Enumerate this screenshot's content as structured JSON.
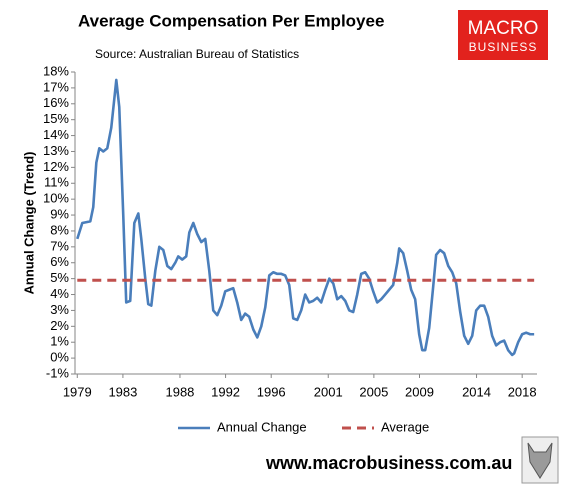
{
  "chart_data": {
    "type": "line",
    "title": "Average Compensation Per Employee",
    "subtitle": "Source: Australian Bureau of Statistics",
    "ylabel": "Annual Change (Trend)",
    "legend": "bottom",
    "xlim": [
      1978.8,
      2019.3
    ],
    "xticks": [
      1979,
      1983,
      1988,
      1992,
      1996,
      2001,
      2005,
      2009,
      2014,
      2018
    ],
    "ylim": [
      -1,
      18
    ],
    "yticks": [
      {
        "value": -1,
        "label": "-1%"
      },
      {
        "value": 0,
        "label": "0%"
      },
      {
        "value": 1,
        "label": "1%"
      },
      {
        "value": 2,
        "label": "2%"
      },
      {
        "value": 3,
        "label": "3%"
      },
      {
        "value": 4,
        "label": "4%"
      },
      {
        "value": 5,
        "label": "5%"
      },
      {
        "value": 6,
        "label": "6%"
      },
      {
        "value": 7,
        "label": "7%"
      },
      {
        "value": 8,
        "label": "8%"
      },
      {
        "value": 9,
        "label": "9%"
      },
      {
        "value": 10,
        "label": "10%"
      },
      {
        "value": 11,
        "label": "11%"
      },
      {
        "value": 12,
        "label": "12%"
      },
      {
        "value": 13,
        "label": "13%"
      },
      {
        "value": 14,
        "label": "14%"
      },
      {
        "value": 15,
        "label": "15%"
      },
      {
        "value": 16,
        "label": "16%"
      },
      {
        "value": 17,
        "label": "17%"
      },
      {
        "value": 18,
        "label": "18%"
      }
    ],
    "series": [
      {
        "name": "Annual Change",
        "color": "#4a7ebb",
        "style": "solid",
        "x": [
          1979.0,
          1979.44,
          1980.14,
          1980.4,
          1980.67,
          1980.93,
          1981.28,
          1981.63,
          1981.98,
          1982.42,
          1982.68,
          1983.03,
          1983.29,
          1983.64,
          1984.0,
          1984.35,
          1984.61,
          1984.96,
          1985.22,
          1985.49,
          1985.84,
          1986.19,
          1986.54,
          1986.89,
          1987.24,
          1987.59,
          1987.85,
          1988.2,
          1988.55,
          1988.82,
          1989.17,
          1989.52,
          1989.87,
          1990.22,
          1990.57,
          1990.92,
          1991.27,
          1991.62,
          1991.97,
          1992.32,
          1992.67,
          1993.02,
          1993.37,
          1993.72,
          1994.07,
          1994.43,
          1994.78,
          1995.13,
          1995.48,
          1995.83,
          1996.18,
          1996.53,
          1996.88,
          1997.23,
          1997.58,
          1997.93,
          1998.28,
          1998.63,
          1998.98,
          1999.33,
          1999.68,
          2000.03,
          2000.38,
          2000.74,
          2001.09,
          2001.44,
          2001.79,
          2002.14,
          2002.49,
          2002.84,
          2003.19,
          2003.54,
          2003.89,
          2004.24,
          2004.59,
          2004.94,
          2005.29,
          2005.64,
          2005.99,
          2006.34,
          2006.69,
          2007.05,
          2007.22,
          2007.57,
          2007.92,
          2008.27,
          2008.62,
          2008.97,
          2009.24,
          2009.5,
          2009.85,
          2010.2,
          2010.46,
          2010.81,
          2011.16,
          2011.52,
          2011.87,
          2012.22,
          2012.57,
          2012.92,
          2013.27,
          2013.62,
          2013.97,
          2014.32,
          2014.67,
          2015.02,
          2015.37,
          2015.72,
          2016.07,
          2016.42,
          2016.77,
          2017.12,
          2017.3,
          2017.65,
          2018.0,
          2018.35,
          2018.7,
          2019.05
        ],
        "values": [
          7.5,
          8.5,
          8.6,
          9.5,
          12.3,
          13.2,
          13.0,
          13.2,
          14.5,
          17.5,
          15.8,
          9.0,
          3.5,
          3.6,
          8.5,
          9.1,
          7.5,
          5.0,
          3.4,
          3.3,
          5.5,
          7.0,
          6.8,
          5.8,
          5.6,
          6.0,
          6.4,
          6.2,
          6.4,
          7.9,
          8.5,
          7.8,
          7.3,
          7.5,
          5.5,
          3.0,
          2.7,
          3.3,
          4.2,
          4.3,
          4.4,
          3.5,
          2.4,
          2.8,
          2.6,
          1.8,
          1.3,
          2.0,
          3.2,
          5.2,
          5.4,
          5.3,
          5.3,
          5.2,
          4.6,
          2.5,
          2.4,
          3.0,
          4.0,
          3.5,
          3.6,
          3.8,
          3.5,
          4.3,
          5.0,
          4.7,
          3.7,
          3.9,
          3.6,
          3.0,
          2.9,
          4.0,
          5.3,
          5.4,
          5.0,
          4.2,
          3.5,
          3.7,
          4.0,
          4.3,
          4.6,
          6.0,
          6.9,
          6.6,
          5.5,
          4.3,
          3.7,
          1.5,
          0.5,
          0.5,
          1.9,
          4.5,
          6.5,
          6.8,
          6.6,
          5.8,
          5.4,
          4.7,
          2.9,
          1.4,
          0.9,
          1.4,
          3.0,
          3.3,
          3.3,
          2.6,
          1.4,
          0.8,
          1.0,
          1.1,
          0.5,
          0.2,
          0.3,
          1.0,
          1.5,
          1.6,
          1.5,
          1.5
        ]
      },
      {
        "name": "Average",
        "color": "#c0504d",
        "style": "dashed",
        "x": [
          1979.0,
          2019.05
        ],
        "values": [
          4.9,
          4.9
        ]
      }
    ]
  },
  "logo": {
    "line1": "MACRO",
    "line2": "BUSINESS"
  },
  "footer": "www.macrobusiness.com.au"
}
